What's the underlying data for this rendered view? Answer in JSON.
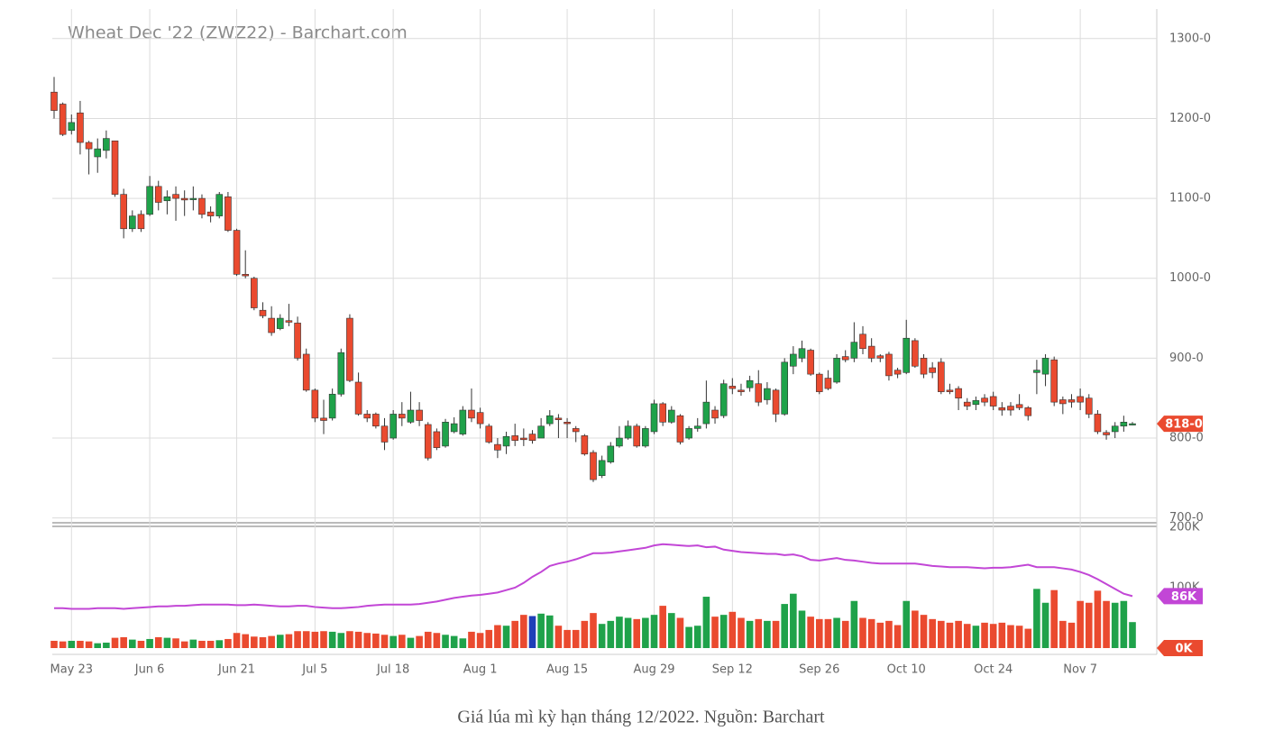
{
  "chart_data": {
    "type": "candlestick",
    "title": "Wheat Dec '22 (ZWZ22) - Barchart.com",
    "categories": [
      null,
      null,
      "May 23",
      null,
      null,
      null,
      null,
      null,
      null,
      null,
      null,
      "Jun 6",
      null,
      null,
      null,
      null,
      null,
      null,
      null,
      null,
      null,
      "Jun 21",
      null,
      null,
      null,
      null,
      null,
      null,
      null,
      null,
      "Jul 5",
      null,
      null,
      null,
      null,
      null,
      null,
      null,
      null,
      "Jul 18",
      null,
      null,
      null,
      null,
      null,
      null,
      null,
      null,
      null,
      "Aug 1",
      null,
      null,
      null,
      null,
      null,
      null,
      null,
      null,
      null,
      "Aug 15",
      null,
      null,
      null,
      null,
      null,
      null,
      null,
      null,
      null,
      "Aug 29",
      null,
      null,
      null,
      null,
      null,
      null,
      null,
      null,
      "Sep 12",
      null,
      null,
      null,
      null,
      null,
      null,
      null,
      null,
      null,
      "Sep 26",
      null,
      null,
      null,
      null,
      null,
      null,
      null,
      null,
      null,
      "Oct 10",
      null,
      null,
      null,
      null,
      null,
      null,
      null,
      null,
      null,
      "Oct 24",
      null,
      null,
      null,
      null,
      null,
      null,
      null,
      null,
      null,
      "Nov 7",
      null,
      null,
      null,
      null,
      null,
      null
    ],
    "open": [
      1233,
      1218,
      1185,
      1207,
      1170,
      1152,
      1160,
      1172,
      1105,
      1062,
      1080,
      1080,
      1115,
      1097,
      1105,
      1100,
      1100,
      1100,
      1083,
      1078,
      1102,
      1060,
      1005,
      1000,
      960,
      950,
      937,
      947,
      944,
      905,
      860,
      825,
      825,
      855,
      950,
      870,
      830,
      830,
      815,
      800,
      830,
      820,
      835,
      817,
      808,
      790,
      808,
      805,
      835,
      832,
      815,
      792,
      790,
      803,
      800,
      805,
      800,
      818,
      825,
      820,
      812,
      803,
      782,
      753,
      770,
      790,
      800,
      815,
      790,
      808,
      843,
      820,
      828,
      800,
      812,
      818,
      835,
      828,
      865,
      860,
      863,
      868,
      848,
      860,
      830,
      890,
      900,
      910,
      880,
      875,
      870,
      902,
      900,
      930,
      915,
      903,
      905,
      885,
      882,
      922,
      900,
      888,
      895,
      860,
      862,
      845,
      842,
      850,
      852,
      838,
      840,
      842,
      838,
      882,
      880,
      898,
      848,
      848,
      852,
      850,
      830,
      807,
      808,
      815,
      818
    ],
    "high": [
      1252,
      1220,
      1205,
      1222,
      1172,
      1175,
      1185,
      1172,
      1112,
      1085,
      1085,
      1128,
      1122,
      1110,
      1115,
      1110,
      1115,
      1105,
      1090,
      1108,
      1108,
      1062,
      1035,
      1002,
      970,
      965,
      955,
      968,
      952,
      912,
      862,
      848,
      862,
      912,
      955,
      882,
      835,
      832,
      825,
      835,
      845,
      858,
      845,
      820,
      812,
      824,
      826,
      840,
      862,
      838,
      818,
      800,
      808,
      818,
      812,
      810,
      825,
      835,
      830,
      825,
      815,
      805,
      785,
      778,
      795,
      815,
      822,
      818,
      815,
      848,
      845,
      840,
      830,
      815,
      825,
      872,
      840,
      873,
      875,
      868,
      878,
      885,
      870,
      862,
      900,
      915,
      922,
      912,
      882,
      885,
      905,
      910,
      945,
      940,
      925,
      905,
      908,
      888,
      948,
      925,
      905,
      895,
      900,
      868,
      865,
      850,
      852,
      855,
      858,
      845,
      845,
      855,
      840,
      898,
      905,
      902,
      852,
      855,
      862,
      855,
      835,
      810,
      820,
      828,
      820
    ],
    "low": [
      1200,
      1178,
      1180,
      1155,
      1130,
      1132,
      1150,
      1102,
      1050,
      1058,
      1058,
      1078,
      1085,
      1080,
      1072,
      1078,
      1085,
      1075,
      1070,
      1075,
      1058,
      1003,
      1000,
      960,
      950,
      928,
      935,
      940,
      897,
      858,
      820,
      805,
      822,
      852,
      870,
      828,
      820,
      812,
      785,
      798,
      815,
      818,
      815,
      772,
      785,
      788,
      806,
      803,
      820,
      812,
      793,
      775,
      780,
      790,
      790,
      793,
      800,
      815,
      800,
      800,
      795,
      778,
      745,
      750,
      768,
      788,
      798,
      788,
      788,
      805,
      815,
      818,
      792,
      798,
      808,
      812,
      818,
      825,
      855,
      853,
      858,
      840,
      842,
      820,
      828,
      880,
      895,
      878,
      855,
      860,
      868,
      895,
      895,
      905,
      895,
      895,
      872,
      875,
      880,
      888,
      875,
      875,
      855,
      855,
      835,
      835,
      835,
      840,
      835,
      828,
      828,
      835,
      822,
      855,
      865,
      840,
      830,
      838,
      835,
      825,
      805,
      798,
      800,
      808,
      816
    ],
    "close": [
      1210,
      1180,
      1195,
      1170,
      1162,
      1162,
      1175,
      1105,
      1062,
      1078,
      1062,
      1115,
      1095,
      1102,
      1100,
      1098,
      1100,
      1080,
      1078,
      1105,
      1060,
      1005,
      1003,
      963,
      953,
      932,
      950,
      945,
      900,
      860,
      825,
      822,
      855,
      907,
      872,
      830,
      825,
      815,
      795,
      830,
      825,
      835,
      822,
      775,
      788,
      820,
      818,
      835,
      825,
      818,
      795,
      785,
      802,
      797,
      798,
      797,
      815,
      828,
      823,
      818,
      808,
      780,
      748,
      772,
      790,
      800,
      815,
      790,
      812,
      843,
      820,
      835,
      795,
      812,
      815,
      845,
      825,
      868,
      862,
      858,
      872,
      845,
      862,
      830,
      895,
      905,
      912,
      880,
      858,
      862,
      900,
      898,
      920,
      912,
      900,
      900,
      878,
      880,
      925,
      890,
      880,
      882,
      858,
      858,
      850,
      840,
      847,
      845,
      840,
      835,
      835,
      838,
      828,
      885,
      900,
      845,
      843,
      845,
      845,
      830,
      808,
      804,
      815,
      820,
      818
    ],
    "up_color": "#1fa24a",
    "down_color": "#ea4a2f",
    "ylim": [
      694,
      1337
    ],
    "yticks": [
      {
        "value": 700,
        "label": "700-0"
      },
      {
        "value": 800,
        "label": "800-0"
      },
      {
        "value": 900,
        "label": "900-0"
      },
      {
        "value": 1000,
        "label": "1000-0"
      },
      {
        "value": 1100,
        "label": "1100-0"
      },
      {
        "value": 1200,
        "label": "1200-0"
      },
      {
        "value": 1300,
        "label": "1300-0"
      }
    ],
    "last_price": {
      "value": 818,
      "label": "818-0"
    },
    "grid": true,
    "volume": {
      "values": [
        12,
        11,
        12,
        12,
        11,
        8,
        9,
        17,
        18,
        14,
        12,
        15,
        18,
        17,
        16,
        11,
        14,
        12,
        12,
        13,
        15,
        25,
        23,
        19,
        18,
        20,
        22,
        23,
        28,
        28,
        27,
        28,
        27,
        25,
        28,
        27,
        25,
        24,
        22,
        20,
        22,
        17,
        20,
        27,
        25,
        22,
        20,
        16,
        27,
        25,
        30,
        38,
        37,
        45,
        55,
        53,
        57,
        54,
        37,
        30,
        30,
        45,
        58,
        40,
        45,
        52,
        50,
        48,
        50,
        55,
        70,
        58,
        50,
        35,
        37,
        85,
        52,
        55,
        60,
        50,
        45,
        48,
        45,
        45,
        73,
        90,
        62,
        52,
        48,
        48,
        50,
        45,
        78,
        50,
        48,
        42,
        45,
        38,
        78,
        62,
        55,
        48,
        45,
        42,
        45,
        40,
        37,
        42,
        40,
        42,
        38,
        37,
        32,
        98,
        75,
        96,
        45,
        42,
        78,
        75,
        95,
        78,
        75,
        78,
        43
      ],
      "highlight": {
        "index": 55,
        "color": "#1f3fb8"
      },
      "ylim": [
        0,
        200
      ],
      "yticks": [
        {
          "value": 0,
          "label": "0K"
        },
        {
          "value": 100,
          "label": "100K"
        },
        {
          "value": 200,
          "label": "200K"
        }
      ],
      "average": {
        "color": "#c246d6",
        "values": [
          66,
          66,
          65,
          65,
          65,
          66,
          66,
          66,
          65,
          66,
          67,
          68,
          69,
          69,
          70,
          70,
          71,
          72,
          72,
          72,
          72,
          71,
          71,
          72,
          71,
          70,
          69,
          69,
          70,
          70,
          68,
          67,
          66,
          66,
          67,
          68,
          70,
          71,
          72,
          72,
          72,
          72,
          73,
          75,
          77,
          80,
          83,
          85,
          87,
          88,
          90,
          92,
          96,
          100,
          108,
          118,
          126,
          136,
          140,
          143,
          147,
          152,
          157,
          157,
          158,
          160,
          162,
          164,
          166,
          170,
          172,
          171,
          170,
          169,
          170,
          167,
          168,
          163,
          161,
          159,
          158,
          157,
          156,
          156,
          154,
          155,
          152,
          146,
          145,
          147,
          149,
          146,
          145,
          143,
          141,
          140,
          140,
          140,
          140,
          140,
          138,
          136,
          135,
          134,
          134,
          134,
          133,
          132,
          133,
          133,
          134,
          136,
          138,
          134,
          134,
          134,
          132,
          130,
          126,
          121,
          114,
          106,
          98,
          90,
          86
        ]
      },
      "last": {
        "value": 86,
        "label": "86K"
      }
    }
  },
  "caption": "Giá lúa mì kỳ hạn tháng 12/2022. Nguồn: Barchart"
}
